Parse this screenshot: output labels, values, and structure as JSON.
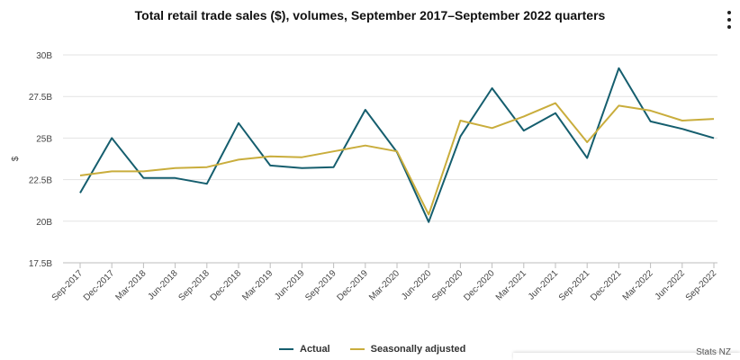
{
  "title": "Total retail trade sales ($), volumes, September 2017–September 2022 quarters",
  "menu_icon": "vertical-ellipsis-icon",
  "credit": "Stats NZ",
  "legend": [
    {
      "label": "Actual",
      "color": "#155e6e"
    },
    {
      "label": "Seasonally adjusted",
      "color": "#c9ad3c"
    }
  ],
  "chart_data": {
    "type": "line",
    "title": "Total retail trade sales ($), volumes, September 2017–September 2022 quarters",
    "xlabel": "",
    "ylabel": "$",
    "ylim": [
      17.5,
      30
    ],
    "y_ticks": [
      17.5,
      20,
      22.5,
      25,
      27.5,
      30
    ],
    "y_tick_labels": [
      "17.5B",
      "20B",
      "22.5B",
      "25B",
      "27.5B",
      "30B"
    ],
    "categories": [
      "Sep-2017",
      "Dec-2017",
      "Mar-2018",
      "Jun-2018",
      "Sep-2018",
      "Dec-2018",
      "Mar-2019",
      "Jun-2019",
      "Sep-2019",
      "Dec-2019",
      "Mar-2020",
      "Jun-2020",
      "Sep-2020",
      "Dec-2020",
      "Mar-2021",
      "Jun-2021",
      "Sep-2021",
      "Dec-2021",
      "Mar-2022",
      "Jun-2022",
      "Sep-2022"
    ],
    "series": [
      {
        "name": "Actual",
        "color": "#155e6e",
        "values": [
          21.7,
          25.0,
          22.6,
          22.6,
          22.25,
          25.9,
          23.35,
          23.2,
          23.25,
          26.7,
          24.15,
          19.95,
          25.1,
          28.0,
          25.45,
          26.5,
          23.8,
          29.2,
          26.0,
          25.55,
          25.0
        ]
      },
      {
        "name": "Seasonally adjusted",
        "color": "#c9ad3c",
        "values": [
          22.75,
          23.0,
          23.0,
          23.2,
          23.25,
          23.7,
          23.9,
          23.85,
          24.2,
          24.55,
          24.2,
          20.4,
          26.05,
          25.6,
          26.3,
          27.1,
          24.75,
          26.95,
          26.65,
          26.05,
          26.15
        ]
      }
    ],
    "grid": true,
    "legend_position": "bottom-center"
  }
}
